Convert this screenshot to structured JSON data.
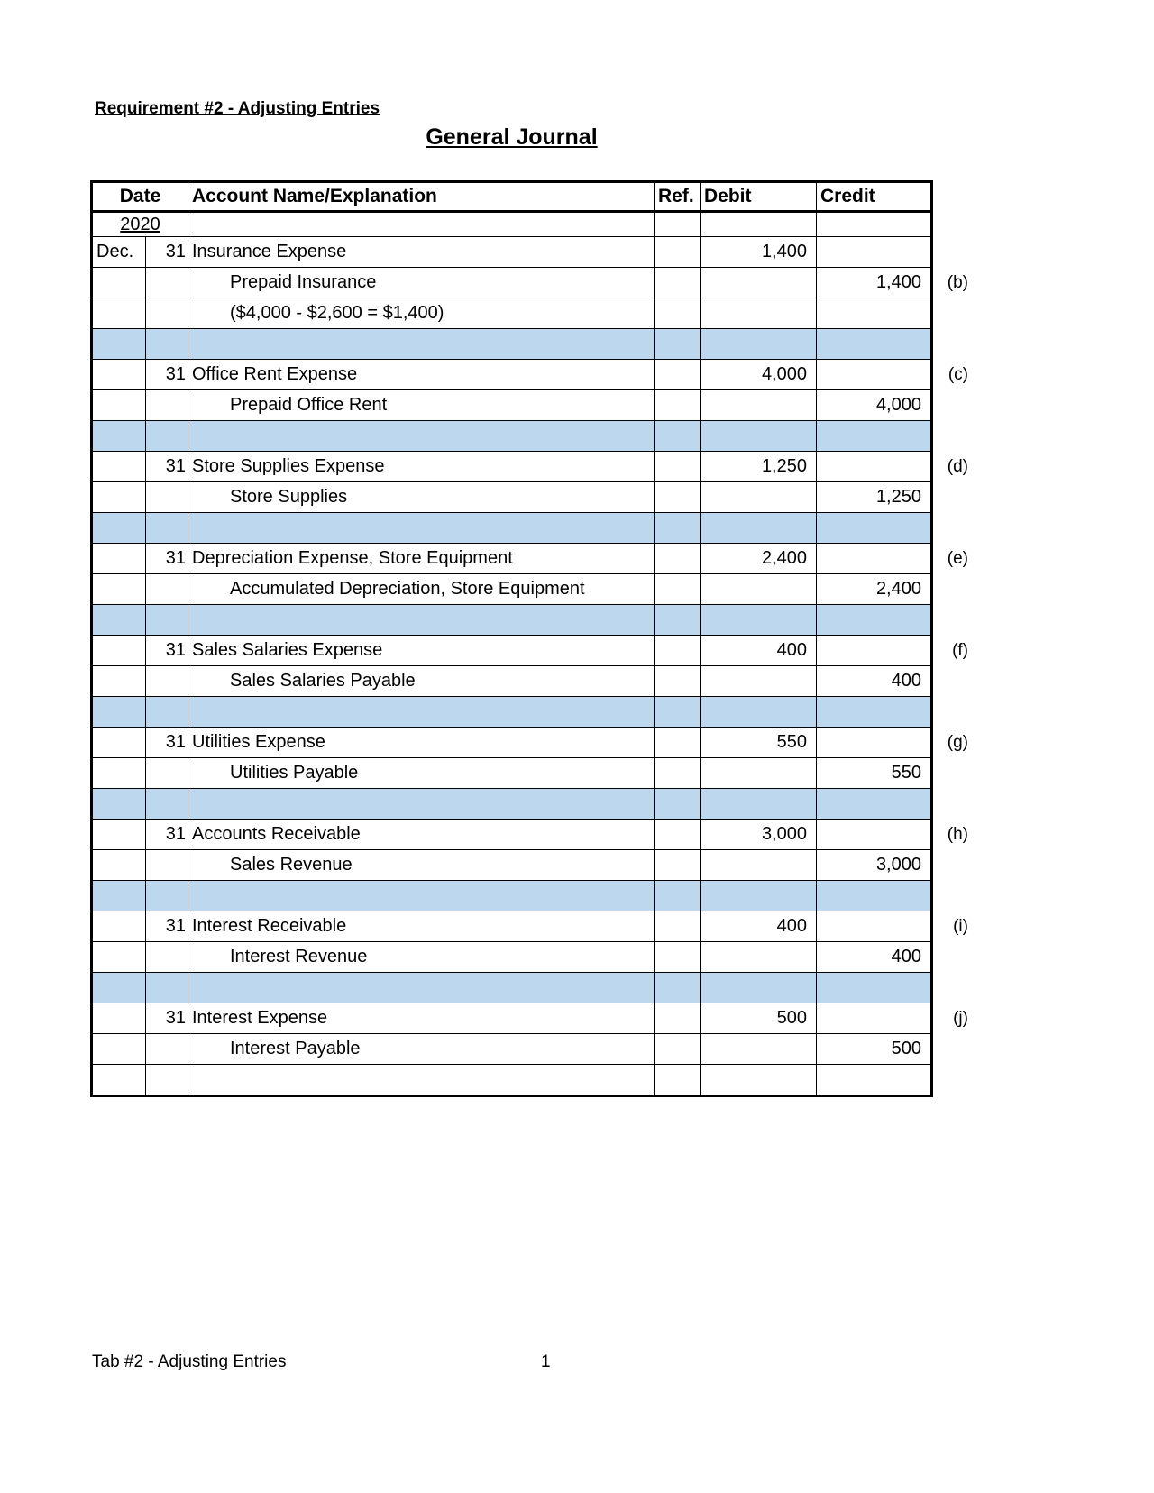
{
  "requirement_heading": "Requirement #2 - Adjusting Entries",
  "journal_title": "General Journal",
  "headers": {
    "date": "Date",
    "account": "Account Name/Explanation",
    "ref": "Ref.",
    "debit": "Debit",
    "credit": "Credit"
  },
  "year": "2020",
  "rows": [
    {
      "month": "Dec.",
      "day": "31",
      "account": "Insurance Expense",
      "indent": false,
      "debit": "1,400",
      "credit": "",
      "letter": ""
    },
    {
      "month": "",
      "day": "",
      "account": "Prepaid Insurance",
      "indent": true,
      "debit": "",
      "credit": "1,400",
      "letter": "(b)"
    },
    {
      "month": "",
      "day": "",
      "account": "($4,000 - $2,600 = $1,400)",
      "indent": true,
      "debit": "",
      "credit": "",
      "letter": ""
    },
    {
      "blank": true
    },
    {
      "month": "",
      "day": "31",
      "account": "Office Rent Expense",
      "indent": false,
      "debit": "4,000",
      "credit": "",
      "letter": "(c)"
    },
    {
      "month": "",
      "day": "",
      "account": "Prepaid Office Rent",
      "indent": true,
      "debit": "",
      "credit": "4,000",
      "letter": ""
    },
    {
      "blank": true
    },
    {
      "month": "",
      "day": "31",
      "account": "Store Supplies Expense",
      "indent": false,
      "debit": "1,250",
      "credit": "",
      "letter": "(d)"
    },
    {
      "month": "",
      "day": "",
      "account": "Store Supplies",
      "indent": true,
      "debit": "",
      "credit": "1,250",
      "letter": ""
    },
    {
      "blank": true
    },
    {
      "month": "",
      "day": "31",
      "account": "Depreciation Expense, Store Equipment",
      "indent": false,
      "debit": "2,400",
      "credit": "",
      "letter": "(e)"
    },
    {
      "month": "",
      "day": "",
      "account": "Accumulated Depreciation, Store Equipment",
      "indent": true,
      "debit": "",
      "credit": "2,400",
      "letter": ""
    },
    {
      "blank": true
    },
    {
      "month": "",
      "day": "31",
      "account": "Sales Salaries Expense",
      "indent": false,
      "debit": "400",
      "credit": "",
      "letter": "(f)"
    },
    {
      "month": "",
      "day": "",
      "account": "Sales Salaries Payable",
      "indent": true,
      "debit": "",
      "credit": "400",
      "letter": ""
    },
    {
      "blank": true
    },
    {
      "month": "",
      "day": "31",
      "account": "Utilities Expense",
      "indent": false,
      "debit": "550",
      "credit": "",
      "letter": "(g)"
    },
    {
      "month": "",
      "day": "",
      "account": "Utilities Payable",
      "indent": true,
      "debit": "",
      "credit": "550",
      "letter": ""
    },
    {
      "blank": true
    },
    {
      "month": "",
      "day": "31",
      "account": "Accounts Receivable",
      "indent": false,
      "debit": "3,000",
      "credit": "",
      "letter": "(h)"
    },
    {
      "month": "",
      "day": "",
      "account": "Sales Revenue",
      "indent": true,
      "debit": "",
      "credit": "3,000",
      "letter": ""
    },
    {
      "blank": true
    },
    {
      "month": "",
      "day": "31",
      "account": "Interest Receivable",
      "indent": false,
      "debit": "400",
      "credit": "",
      "letter": "(i)"
    },
    {
      "month": "",
      "day": "",
      "account": "Interest Revenue",
      "indent": true,
      "debit": "",
      "credit": "400",
      "letter": ""
    },
    {
      "blank": true
    },
    {
      "month": "",
      "day": "31",
      "account": "Interest Expense",
      "indent": false,
      "debit": "500",
      "credit": "",
      "letter": "(j)"
    },
    {
      "month": "",
      "day": "",
      "account": "Interest Payable",
      "indent": true,
      "debit": "",
      "credit": "500",
      "letter": ""
    },
    {
      "month": "",
      "day": "",
      "account": "",
      "indent": false,
      "debit": "",
      "credit": "",
      "letter": ""
    }
  ],
  "colors": {
    "separator_row": "#BDD7EE"
  },
  "footer": {
    "tab_name": "Tab #2 - Adjusting Entries",
    "page_number": "1"
  }
}
